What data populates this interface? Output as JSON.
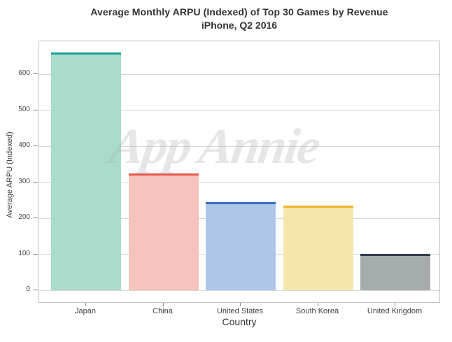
{
  "chart_data": {
    "type": "bar",
    "title": "Average Monthly ARPU (Indexed) of Top 30 Games by Revenue",
    "subtitle": "iPhone, Q2 2016",
    "categories": [
      "Japan",
      "China",
      "United States",
      "South Korea",
      "United Kingdom"
    ],
    "values": [
      660,
      325,
      245,
      235,
      100
    ],
    "xlabel": "Country",
    "ylabel": "Average ARPU (Indexed)",
    "ylim": [
      0,
      690
    ],
    "yticks": [
      0,
      100,
      200,
      300,
      400,
      500,
      600
    ],
    "grid": true,
    "legend": false,
    "watermark": "App Annie",
    "bar_colors": [
      {
        "fill": "#a9dccb",
        "edge": "#17a294"
      },
      {
        "fill": "#f7c4bd",
        "edge": "#e4574a"
      },
      {
        "fill": "#aec7e8",
        "edge": "#3a6fc4"
      },
      {
        "fill": "#f8e5ab",
        "edge": "#f0b42c"
      },
      {
        "fill": "#a6abae",
        "edge": "#2e3d4e"
      }
    ]
  }
}
